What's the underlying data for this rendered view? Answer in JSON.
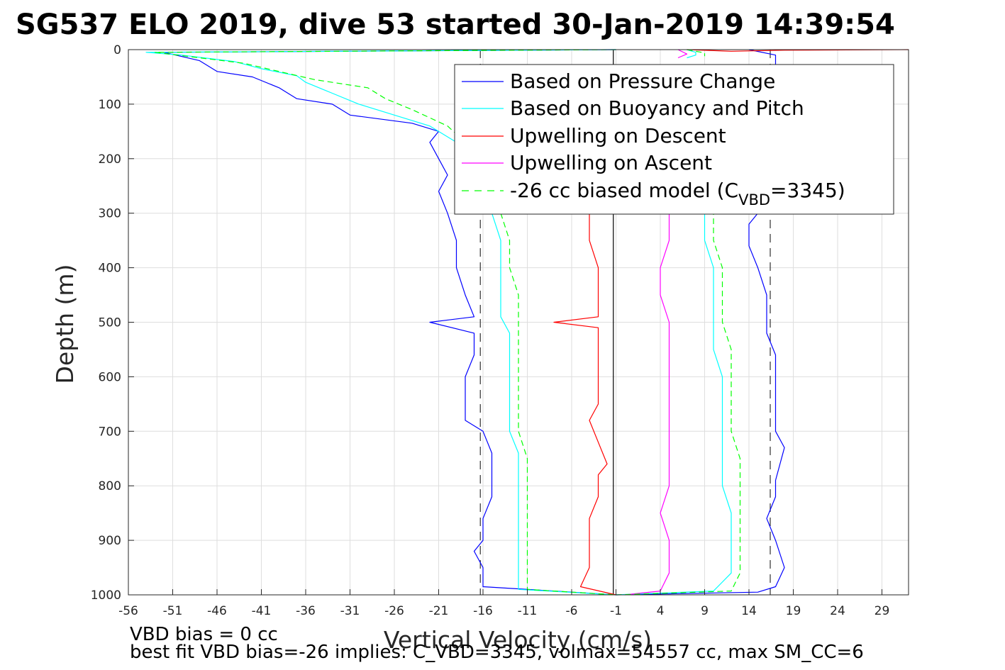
{
  "chart_data": {
    "type": "line",
    "title": "SG537 ELO 2019, dive 53 started 30-Jan-2019 14:39:54",
    "xlabel": "Vertical Velocity (cm/s)",
    "ylabel": "Depth (m)",
    "xlim": [
      -56,
      32
    ],
    "ylim": [
      1000,
      0
    ],
    "y_reversed": true,
    "xticks": [
      -56,
      -51,
      -46,
      -41,
      -36,
      -31,
      -26,
      -21,
      -16,
      -11,
      -6,
      -1,
      4,
      9,
      14,
      19,
      24,
      29
    ],
    "yticks": [
      0,
      100,
      200,
      300,
      400,
      500,
      600,
      700,
      800,
      900,
      1000
    ],
    "grid": true,
    "legend_position": "top-right",
    "reference_lines": {
      "dashed_x": [
        -16.3,
        16.4
      ],
      "solid_x": [
        -1.3
      ]
    },
    "series": [
      {
        "name": "Based on Pressure Change",
        "color": "#0000ff",
        "style": "solid",
        "segments": [
          [
            [
              -1,
              0
            ],
            [
              -52,
              5
            ],
            [
              -48,
              20
            ],
            [
              -46,
              40
            ],
            [
              -42,
              50
            ],
            [
              -39,
              70
            ],
            [
              -37,
              90
            ],
            [
              -33,
              100
            ],
            [
              -31,
              120
            ],
            [
              -24,
              135
            ],
            [
              -21,
              150
            ],
            [
              -22,
              170
            ],
            [
              -21,
              200
            ],
            [
              -20,
              230
            ],
            [
              -21,
              260
            ],
            [
              -20,
              300
            ],
            [
              -19,
              350
            ],
            [
              -19,
              400
            ],
            [
              -18,
              450
            ],
            [
              -17,
              490
            ],
            [
              -22,
              500
            ],
            [
              -17,
              520
            ],
            [
              -17,
              560
            ],
            [
              -18,
              600
            ],
            [
              -18,
              650
            ],
            [
              -18,
              680
            ],
            [
              -16,
              700
            ],
            [
              -15,
              740
            ],
            [
              -15,
              780
            ],
            [
              -15,
              820
            ],
            [
              -16,
              860
            ],
            [
              -16,
              900
            ],
            [
              -17,
              920
            ],
            [
              -16,
              950
            ],
            [
              -16,
              985
            ],
            [
              -1,
              1000
            ]
          ],
          [
            [
              -1,
              1000
            ],
            [
              15,
              995
            ],
            [
              17,
              985
            ],
            [
              18,
              950
            ],
            [
              17,
              900
            ],
            [
              16,
              860
            ],
            [
              17,
              820
            ],
            [
              17,
              790
            ],
            [
              18,
              730
            ],
            [
              17,
              700
            ],
            [
              17,
              650
            ],
            [
              17,
              600
            ],
            [
              17,
              560
            ],
            [
              16,
              520
            ],
            [
              16,
              480
            ],
            [
              16,
              450
            ],
            [
              15,
              400
            ],
            [
              14,
              360
            ],
            [
              14,
              320
            ],
            [
              15,
              300
            ]
          ],
          [
            [
              14,
              0
            ],
            [
              17,
              10
            ],
            [
              17,
              20
            ],
            [
              17,
              30
            ]
          ]
        ]
      },
      {
        "name": "Based on Buoyancy and Pitch",
        "color": "#00ffff",
        "style": "solid",
        "segments": [
          [
            [
              -1,
              0
            ],
            [
              -54,
              5
            ],
            [
              -50,
              10
            ],
            [
              -44,
              22
            ],
            [
              -41,
              35
            ],
            [
              -37,
              48
            ],
            [
              -36,
              60
            ],
            [
              -33,
              80
            ],
            [
              -30,
              100
            ],
            [
              -26,
              120
            ],
            [
              -22,
              140
            ],
            [
              -20,
              160
            ],
            [
              -18,
              180
            ],
            [
              -17,
              200
            ]
          ],
          [
            [
              -15,
              300
            ],
            [
              -14,
              350
            ],
            [
              -14,
              400
            ],
            [
              -14,
              450
            ],
            [
              -14,
              490
            ],
            [
              -13,
              520
            ],
            [
              -13,
              560
            ],
            [
              -13,
              600
            ],
            [
              -13,
              660
            ],
            [
              -13,
              700
            ],
            [
              -12,
              740
            ],
            [
              -12,
              780
            ],
            [
              -12,
              820
            ],
            [
              -12,
              860
            ],
            [
              -12,
              900
            ],
            [
              -12,
              950
            ],
            [
              -12,
              990
            ],
            [
              -1,
              1000
            ]
          ],
          [
            [
              -1,
              1000
            ],
            [
              10,
              993
            ],
            [
              12,
              960
            ],
            [
              12,
              900
            ],
            [
              12,
              850
            ],
            [
              11,
              800
            ],
            [
              11,
              750
            ],
            [
              11,
              700
            ],
            [
              11,
              650
            ],
            [
              11,
              600
            ],
            [
              10,
              550
            ],
            [
              10,
              500
            ],
            [
              10,
              450
            ],
            [
              10,
              400
            ],
            [
              9,
              350
            ],
            [
              9,
              300
            ]
          ],
          [
            [
              7,
              0
            ],
            [
              8,
              5
            ],
            [
              8,
              10
            ],
            [
              7,
              15
            ]
          ]
        ]
      },
      {
        "name": "Upwelling on Descent",
        "color": "#ff0000",
        "style": "solid",
        "segments": [
          [
            [
              -4,
              300
            ],
            [
              -4,
              350
            ],
            [
              -3,
              400
            ],
            [
              -3,
              450
            ],
            [
              -3,
              490
            ],
            [
              -8,
              500
            ],
            [
              -3,
              510
            ],
            [
              -3,
              550
            ],
            [
              -3,
              600
            ],
            [
              -3,
              650
            ],
            [
              -4,
              680
            ],
            [
              -3,
              720
            ],
            [
              -2,
              760
            ],
            [
              -3,
              780
            ],
            [
              -3,
              820
            ],
            [
              -4,
              860
            ],
            [
              -4,
              900
            ],
            [
              -4,
              950
            ],
            [
              -5,
              985
            ],
            [
              -1,
              1000
            ]
          ],
          [
            [
              7,
              0
            ],
            [
              12,
              3
            ],
            [
              18,
              1
            ],
            [
              32,
              0
            ]
          ]
        ]
      },
      {
        "name": "Upwelling on Ascent",
        "color": "#ff00ff",
        "style": "solid",
        "segments": [
          [
            [
              0,
              1000
            ],
            [
              4,
              993
            ],
            [
              5,
              960
            ],
            [
              5,
              900
            ],
            [
              4,
              850
            ],
            [
              5,
              800
            ],
            [
              5,
              750
            ],
            [
              5,
              700
            ],
            [
              5,
              650
            ],
            [
              5,
              600
            ],
            [
              5,
              550
            ],
            [
              5,
              500
            ],
            [
              4,
              450
            ],
            [
              4,
              400
            ],
            [
              5,
              350
            ],
            [
              5,
              300
            ]
          ],
          [
            [
              6,
              0
            ],
            [
              7,
              8
            ],
            [
              6,
              15
            ]
          ]
        ]
      },
      {
        "name": "-26 cc biased model (C_VBD=3345)",
        "color": "#00ff00",
        "style": "dashed",
        "segments": [
          [
            [
              -1,
              0
            ],
            [
              -53,
              5
            ],
            [
              -48,
              15
            ],
            [
              -43,
              25
            ],
            [
              -39,
              40
            ],
            [
              -35,
              55
            ],
            [
              -29,
              70
            ],
            [
              -27,
              90
            ],
            [
              -24,
              110
            ],
            [
              -20,
              140
            ],
            [
              -18,
              170
            ],
            [
              -16,
              200
            ]
          ],
          [
            [
              -14,
              300
            ],
            [
              -13,
              350
            ],
            [
              -13,
              400
            ],
            [
              -12,
              450
            ],
            [
              -12,
              500
            ],
            [
              -12,
              560
            ],
            [
              -12,
              600
            ],
            [
              -12,
              650
            ],
            [
              -12,
              700
            ],
            [
              -11,
              750
            ],
            [
              -11,
              800
            ],
            [
              -11,
              850
            ],
            [
              -11,
              900
            ],
            [
              -11,
              950
            ],
            [
              -11,
              990
            ],
            [
              -1,
              1000
            ]
          ],
          [
            [
              -1,
              1000
            ],
            [
              12,
              993
            ],
            [
              13,
              960
            ],
            [
              13,
              900
            ],
            [
              13,
              850
            ],
            [
              13,
              800
            ],
            [
              13,
              750
            ],
            [
              12,
              700
            ],
            [
              12,
              650
            ],
            [
              12,
              600
            ],
            [
              12,
              550
            ],
            [
              11,
              500
            ],
            [
              11,
              450
            ],
            [
              11,
              400
            ],
            [
              10,
              350
            ],
            [
              10,
              300
            ]
          ],
          [
            [
              7,
              0
            ],
            [
              9,
              6
            ],
            [
              9,
              12
            ]
          ]
        ]
      }
    ]
  },
  "legend": [
    "Based on Pressure Change",
    "Based on Buoyancy and Pitch",
    "Upwelling on Descent",
    "Upwelling on Ascent"
  ],
  "legend_last": {
    "prefix": "-26 cc biased model (C",
    "subscript": "VBD",
    "suffix": "=3345)"
  },
  "footer": {
    "line1": "VBD bias = 0 cc",
    "line2": "best fit VBD bias=-26 implies: C_VBD=3345, volmax=54557 cc, max SM_CC=6"
  }
}
